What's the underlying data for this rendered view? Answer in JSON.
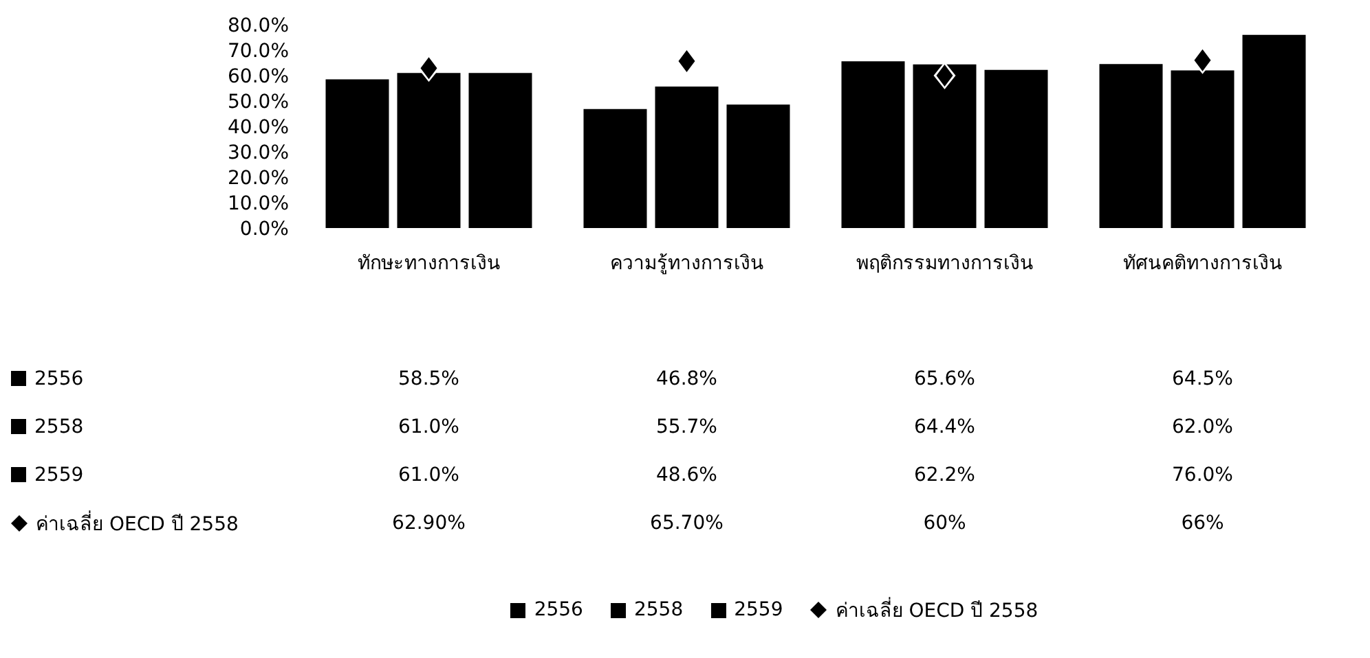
{
  "chart_data": {
    "type": "bar",
    "categories": [
      "ทักษะทางการเงิน",
      "ความรู้ทางการเงิน",
      "พฤติกรรมทางการเงิน",
      "ทัศนคติทางการเงิน"
    ],
    "series": [
      {
        "name": "2556",
        "color": "#000000",
        "values": [
          58.5,
          46.8,
          65.6,
          64.5
        ],
        "value_labels": [
          "58.5%",
          "46.8%",
          "65.6%",
          "64.5%"
        ]
      },
      {
        "name": "2558",
        "color": "#000000",
        "values": [
          61.0,
          55.7,
          64.4,
          62.0
        ],
        "value_labels": [
          "61.0%",
          "55.7%",
          "64.4%",
          "62.0%"
        ]
      },
      {
        "name": "2559",
        "color": "#000000",
        "values": [
          61.0,
          48.6,
          62.2,
          76.0
        ],
        "value_labels": [
          "61.0%",
          "48.6%",
          "62.2%",
          "76.0%"
        ]
      },
      {
        "name": "ค่าเฉลี่ย OECD ปี 2558",
        "type": "scatter",
        "marker": "diamond",
        "color": "#000000",
        "values": [
          62.9,
          65.7,
          60,
          66
        ],
        "value_labels": [
          "62.90%",
          "65.70%",
          "60%",
          "66%"
        ]
      }
    ],
    "ylim": [
      0,
      80
    ],
    "yticks": [
      {
        "value": 0,
        "label": "0.0%"
      },
      {
        "value": 10,
        "label": "10.0%"
      },
      {
        "value": 20,
        "label": "20.0%"
      },
      {
        "value": 30,
        "label": "30.0%"
      },
      {
        "value": 40,
        "label": "40.0%"
      },
      {
        "value": 50,
        "label": "50.0%"
      },
      {
        "value": 60,
        "label": "60.0%"
      },
      {
        "value": 70,
        "label": "70.0%"
      },
      {
        "value": 80,
        "label": "80.0%"
      }
    ],
    "grid": false,
    "legend": "bottom"
  }
}
